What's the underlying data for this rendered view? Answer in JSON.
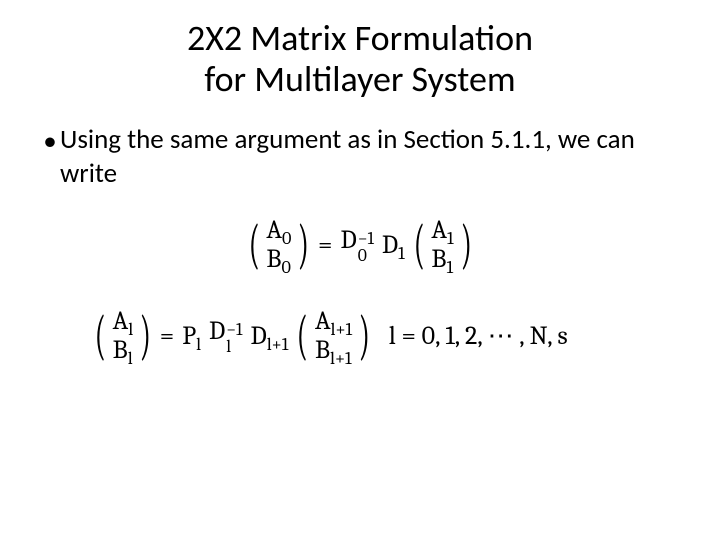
{
  "title_line1": "2X2 Matrix Formulation",
  "title_line2": "for Multilayer System",
  "bullet_text": "Using the same argument as in Section 5.1.1, we can write",
  "eq1": {
    "lhs_top": "A",
    "lhs_top_sub": "0",
    "lhs_bot": "B",
    "lhs_bot_sub": "0",
    "eq_sign": "=",
    "D1": "D",
    "D1_sup": "−1",
    "D1_sub": "0",
    "D2": "D",
    "D2_sub": "1",
    "rhs_top": "A",
    "rhs_top_sub": "1",
    "rhs_bot": "B",
    "rhs_bot_sub": "1"
  },
  "eq2": {
    "lhs_top": "A",
    "lhs_top_sub": "l",
    "lhs_bot": "B",
    "lhs_bot_sub": "l",
    "eq_sign": "=",
    "P": "P",
    "P_sub": "l",
    "D1": "D",
    "D1_sup": "−1",
    "D1_sub": "l",
    "D2": "D",
    "D2_sub": "l+1",
    "rhs_top": "A",
    "rhs_top_sub": "l+1",
    "rhs_bot": "B",
    "rhs_bot_sub": "l+1",
    "range": "l = 0, 1, 2, ⋯ , N, s"
  }
}
